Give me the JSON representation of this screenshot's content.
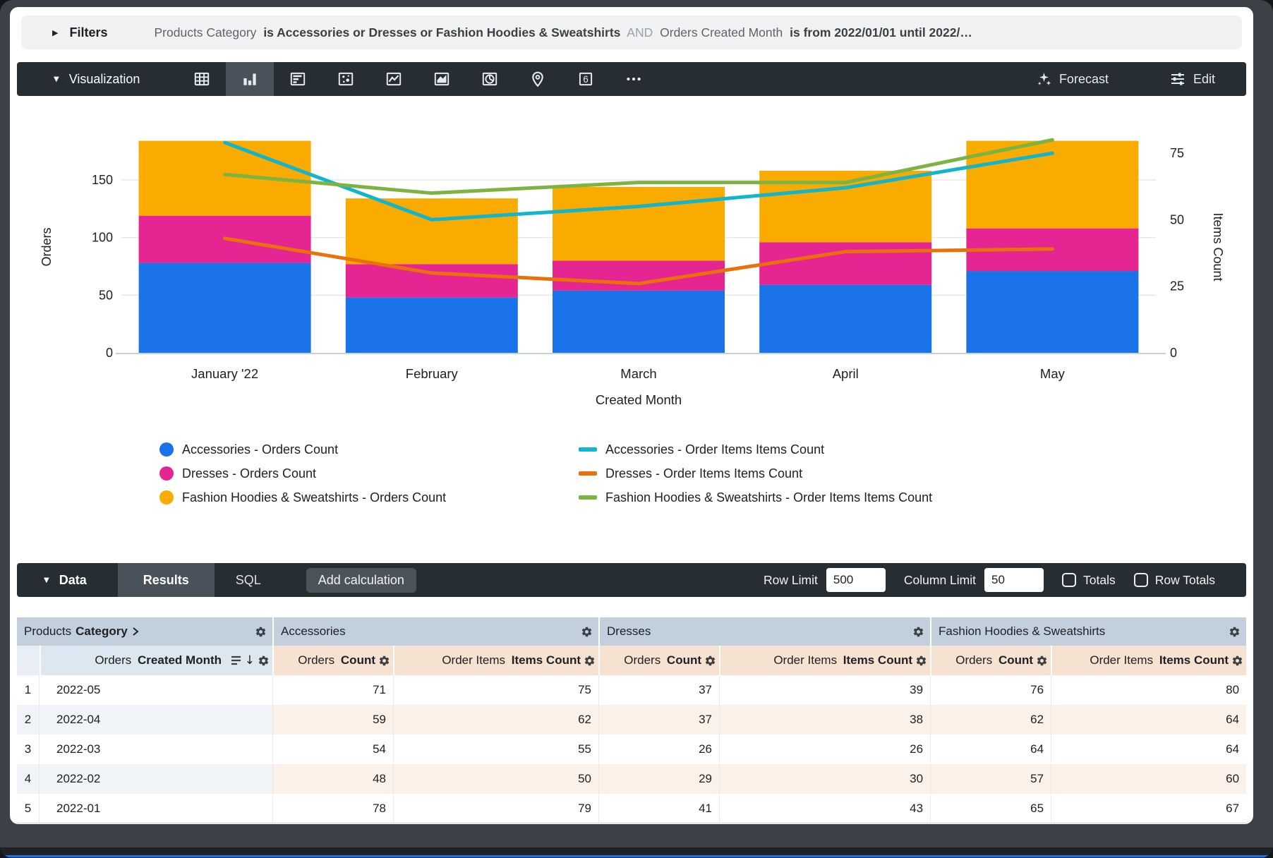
{
  "filters": {
    "label": "Filters",
    "parts": [
      {
        "text": "Products Category",
        "style": "field"
      },
      {
        "text": "is Accessories or Dresses or Fashion Hoodies & Sweatshirts",
        "style": "value"
      },
      {
        "text": "AND",
        "style": "and"
      },
      {
        "text": "Orders Created Month",
        "style": "field"
      },
      {
        "text": "is from 2022/01/01 until 2022/…",
        "style": "value"
      }
    ]
  },
  "viz_toolbar": {
    "label": "Visualization",
    "icons": [
      {
        "name": "table-chart-icon",
        "selected": false
      },
      {
        "name": "column-chart-icon",
        "selected": true
      },
      {
        "name": "bar-chart-icon",
        "selected": false
      },
      {
        "name": "scatter-chart-icon",
        "selected": false
      },
      {
        "name": "line-chart-icon",
        "selected": false
      },
      {
        "name": "area-chart-icon",
        "selected": false
      },
      {
        "name": "pie-chart-icon",
        "selected": false
      },
      {
        "name": "map-chart-icon",
        "selected": false
      },
      {
        "name": "single-value-icon",
        "selected": false,
        "glyph": "6"
      },
      {
        "name": "more-charts-icon",
        "selected": false
      }
    ],
    "forecast_label": "Forecast",
    "edit_label": "Edit"
  },
  "chart_data": {
    "type": "combo: stacked bar + line, dual axis",
    "categories": [
      "January '22",
      "February",
      "March",
      "April",
      "May"
    ],
    "bar_series": [
      {
        "name": "Accessories - Orders Count",
        "color": "#1A73E8",
        "values": [
          78,
          48,
          54,
          59,
          71
        ]
      },
      {
        "name": "Dresses - Orders Count",
        "color": "#E52592",
        "values": [
          41,
          29,
          26,
          37,
          37
        ]
      },
      {
        "name": "Fashion Hoodies & Sweatshirts - Orders Count",
        "color": "#F9AB00",
        "values": [
          65,
          57,
          64,
          62,
          76
        ]
      }
    ],
    "line_series": [
      {
        "name": "Accessories - Order Items Items Count",
        "color": "#12B5CB",
        "values": [
          79,
          50,
          55,
          62,
          75
        ]
      },
      {
        "name": "Dresses - Order Items Items Count",
        "color": "#E8710A",
        "values": [
          43,
          30,
          26,
          38,
          39
        ]
      },
      {
        "name": "Fashion Hoodies & Sweatshirts - Order Items Items Count",
        "color": "#7CB342",
        "values": [
          67,
          60,
          64,
          64,
          80
        ]
      }
    ],
    "left_axis": {
      "title": "Orders",
      "ticks": [
        0,
        50,
        100,
        150
      ]
    },
    "right_axis": {
      "title": "Items Count",
      "ticks": [
        0,
        25,
        50,
        75
      ]
    },
    "xlabel": "Created Month",
    "grid": true,
    "legend_position": "bottom, two columns"
  },
  "data_toolbar": {
    "label": "Data",
    "tabs": [
      {
        "label": "Results",
        "active": true
      },
      {
        "label": "SQL",
        "active": false
      }
    ],
    "add_calculation_label": "Add calculation",
    "row_limit_label": "Row Limit",
    "row_limit_value": "500",
    "column_limit_label": "Column Limit",
    "column_limit_value": "50",
    "totals_label": "Totals",
    "totals_checked": false,
    "row_totals_label": "Row Totals",
    "row_totals_checked": false
  },
  "table": {
    "dimension_group": {
      "prefix": "Products",
      "name": "Category"
    },
    "dimension_column": {
      "prefix": "Orders",
      "name": "Created Month"
    },
    "groups": [
      "Accessories",
      "Dresses",
      "Fashion Hoodies & Sweatshirts"
    ],
    "measure_columns": [
      {
        "prefix": "Orders",
        "name": "Count"
      },
      {
        "prefix": "Order Items",
        "name": "Items Count"
      }
    ],
    "rows": [
      {
        "num": "1",
        "month": "2022-05",
        "values": [
          71,
          75,
          37,
          39,
          76,
          80
        ]
      },
      {
        "num": "2",
        "month": "2022-04",
        "values": [
          59,
          62,
          37,
          38,
          62,
          64
        ]
      },
      {
        "num": "3",
        "month": "2022-03",
        "values": [
          54,
          55,
          26,
          26,
          64,
          64
        ]
      },
      {
        "num": "4",
        "month": "2022-02",
        "values": [
          48,
          50,
          29,
          30,
          57,
          60
        ]
      },
      {
        "num": "5",
        "month": "2022-01",
        "values": [
          78,
          79,
          41,
          43,
          65,
          67
        ]
      }
    ]
  },
  "colors": {
    "accent_blue": "#1A73E8",
    "magenta": "#E52592",
    "amber": "#F9AB00",
    "cyan": "#12B5CB",
    "orange": "#E8710A",
    "green": "#7CB342",
    "toolbar_dark": "#262d33",
    "group_header_bg": "#c2cfdc",
    "measure_header_bg": "#f6e2d0",
    "dim_header_bg": "#dde7f0"
  }
}
